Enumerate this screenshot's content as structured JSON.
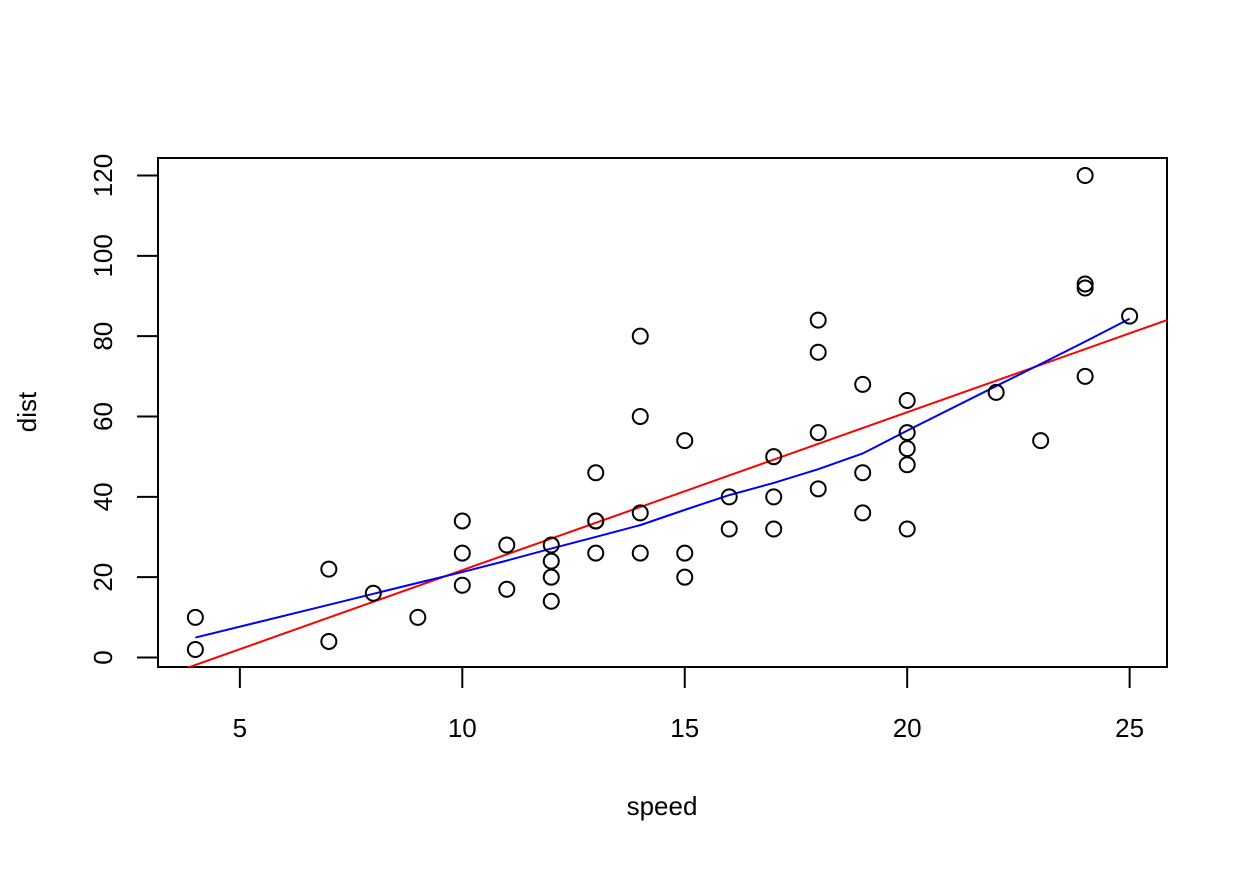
{
  "chart_data": {
    "type": "scatter",
    "title": "",
    "xlabel": "speed",
    "ylabel": "dist",
    "xlim": [
      3.16,
      25.84
    ],
    "ylim": [
      -2.36,
      124.36
    ],
    "x_ticks": [
      5,
      10,
      15,
      20,
      25
    ],
    "x_tick_labels": [
      "5",
      "10",
      "15",
      "20",
      "25"
    ],
    "y_ticks": [
      0,
      20,
      40,
      60,
      80,
      100,
      120
    ],
    "y_tick_labels": [
      "0",
      "20",
      "40",
      "60",
      "80",
      "100",
      "120"
    ],
    "grid": false,
    "legend": "none",
    "points": {
      "x": [
        4,
        4,
        7,
        7,
        8,
        9,
        10,
        10,
        10,
        11,
        11,
        12,
        12,
        12,
        12,
        13,
        13,
        13,
        13,
        14,
        14,
        14,
        14,
        15,
        15,
        15,
        16,
        16,
        17,
        17,
        17,
        18,
        18,
        18,
        18,
        19,
        19,
        19,
        20,
        20,
        20,
        20,
        20,
        22,
        23,
        24,
        24,
        24,
        24,
        25
      ],
      "y": [
        2,
        10,
        4,
        22,
        16,
        10,
        18,
        26,
        34,
        17,
        28,
        14,
        20,
        24,
        28,
        26,
        34,
        34,
        46,
        26,
        36,
        60,
        80,
        20,
        26,
        54,
        32,
        40,
        32,
        40,
        50,
        42,
        56,
        76,
        84,
        36,
        46,
        68,
        32,
        48,
        52,
        56,
        64,
        66,
        54,
        70,
        92,
        93,
        120,
        85
      ],
      "marker": "open-circle",
      "color": "#000000"
    },
    "series": [
      {
        "kind": "regression-line",
        "color": "#ff0000",
        "intercept": -17.579,
        "slope": 3.932
      },
      {
        "kind": "smoothed-line",
        "color": "#0000ff",
        "x": [
          4,
          7,
          8,
          9,
          10,
          11,
          12,
          13,
          14,
          15,
          16,
          17,
          18,
          19,
          20,
          22,
          23,
          24,
          25
        ],
        "y": [
          4.965459,
          13.124495,
          15.858633,
          18.579691,
          21.280313,
          24.129277,
          27.119549,
          30.027276,
          32.962506,
          36.757728,
          40.435075,
          43.463492,
          46.885479,
          50.793152,
          56.491224,
          67.585824,
          73.079695,
          78.643164,
          84.328698
        ]
      }
    ]
  }
}
